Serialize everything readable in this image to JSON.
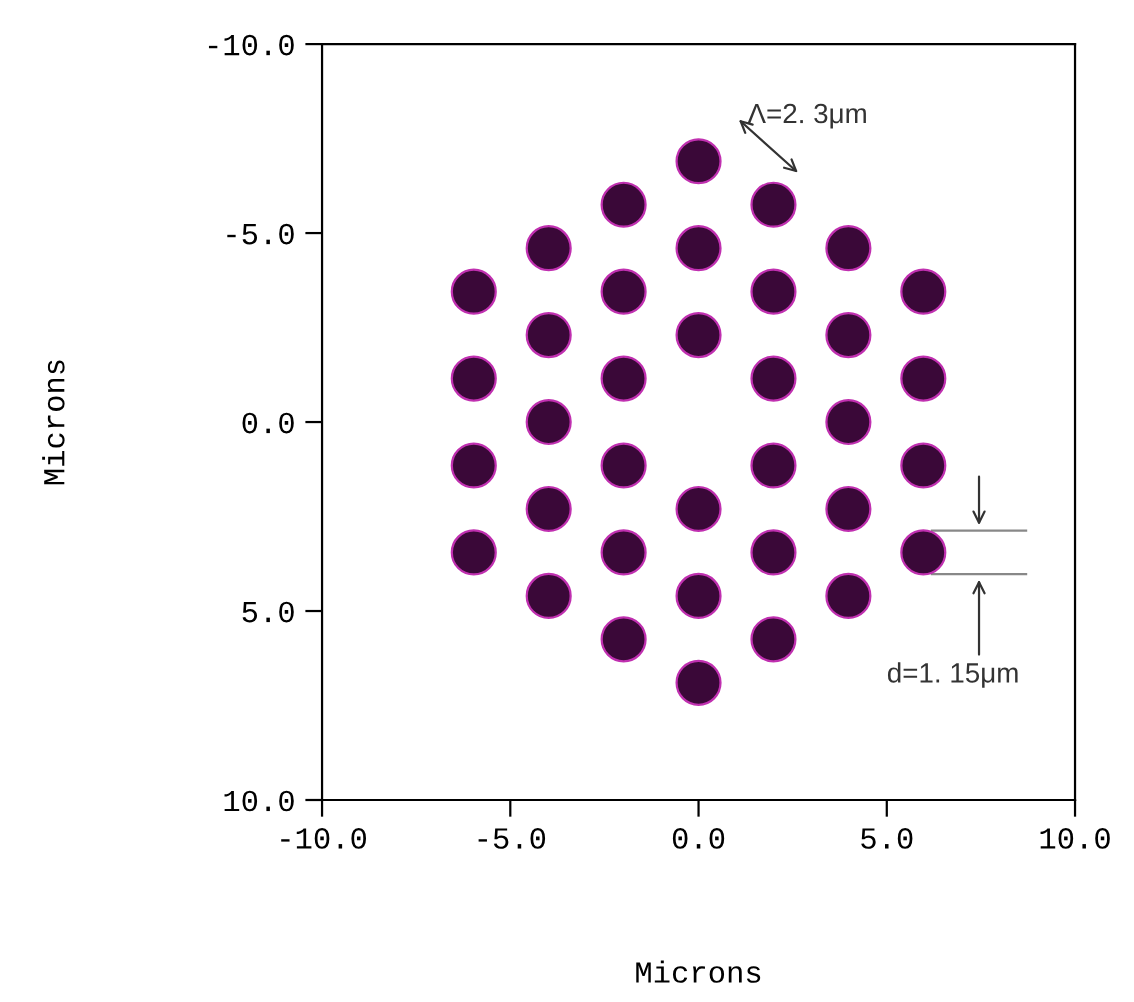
{
  "chart_data": {
    "type": "scatter",
    "xlabel": "Microns",
    "ylabel": "Microns",
    "x": [
      0,
      0,
      0,
      0,
      0,
      0,
      -1.99,
      -1.99,
      -1.99,
      -1.99,
      -1.99,
      -1.99,
      1.99,
      1.99,
      1.99,
      1.99,
      1.99,
      1.99,
      -3.98,
      -3.98,
      -3.98,
      -3.98,
      -3.98,
      3.98,
      3.98,
      3.98,
      3.98,
      3.98,
      -5.97,
      -5.97,
      -5.97,
      -5.97,
      5.97,
      5.97,
      5.97,
      5.97
    ],
    "series": [
      {
        "color": "#3a0838",
        "values": [
          -6.9,
          -4.6,
          -2.3,
          2.3,
          4.6,
          6.9,
          -5.75,
          -3.45,
          -1.15,
          1.15,
          3.45,
          5.75,
          -5.75,
          -3.45,
          -1.15,
          1.15,
          3.45,
          5.75,
          -4.6,
          -2.3,
          0,
          2.3,
          4.6,
          -4.6,
          -2.3,
          0,
          2.3,
          4.6,
          -3.45,
          -1.15,
          1.15,
          3.45,
          -3.45,
          -1.15,
          1.15,
          3.45
        ]
      }
    ],
    "marker": "circle",
    "xlim": [
      -10,
      10
    ],
    "ylim": [
      10,
      -10
    ],
    "xticks": [
      {
        "value": -10,
        "label": "-10.0"
      },
      {
        "value": -5,
        "label": "-5.0"
      },
      {
        "value": 0,
        "label": "0.0"
      },
      {
        "value": 5,
        "label": "5.0"
      },
      {
        "value": 10,
        "label": "10.0"
      }
    ],
    "yticks": [
      {
        "value": -10,
        "label": "-10.0"
      },
      {
        "value": -5,
        "label": "-5.0"
      },
      {
        "value": 0,
        "label": "0.0"
      },
      {
        "value": 5,
        "label": "5.0"
      },
      {
        "value": 10,
        "label": "10.0"
      }
    ],
    "grid": false,
    "annotations": [
      "Λ=2. 3μm",
      "d=1. 15μm"
    ]
  }
}
